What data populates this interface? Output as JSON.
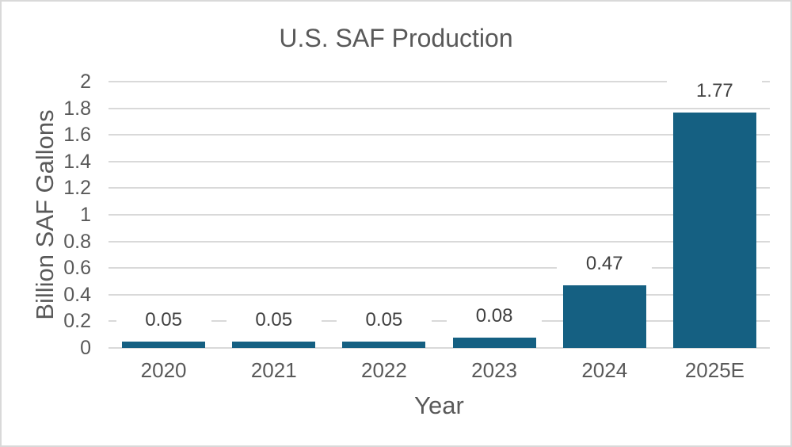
{
  "window": {
    "background_color": "#ffffff",
    "frame_border_color": "#d9d9d9"
  },
  "chart_data": {
    "type": "bar",
    "title": "U.S. SAF Production",
    "xlabel": "Year",
    "ylabel": "Billion SAF Gallons",
    "categories": [
      "2020",
      "2021",
      "2022",
      "2023",
      "2024",
      "2025E"
    ],
    "values": [
      0.05,
      0.05,
      0.05,
      0.08,
      0.47,
      1.77
    ],
    "data_labels": [
      "0.05",
      "0.05",
      "0.05",
      "0.08",
      "0.47",
      "1.77"
    ],
    "ylim": [
      0,
      2
    ],
    "ytick_step": 0.2,
    "ytick_labels": [
      "0",
      "0.2",
      "0.4",
      "0.6",
      "0.8",
      "1",
      "1.2",
      "1.4",
      "1.6",
      "1.8",
      "2"
    ],
    "grid": true,
    "legend": "none",
    "bar_color": "#156082",
    "gridline_color": "#d9d9d9",
    "title_color": "#595959",
    "axis_text_color": "#595959",
    "data_label_color": "#404040"
  }
}
